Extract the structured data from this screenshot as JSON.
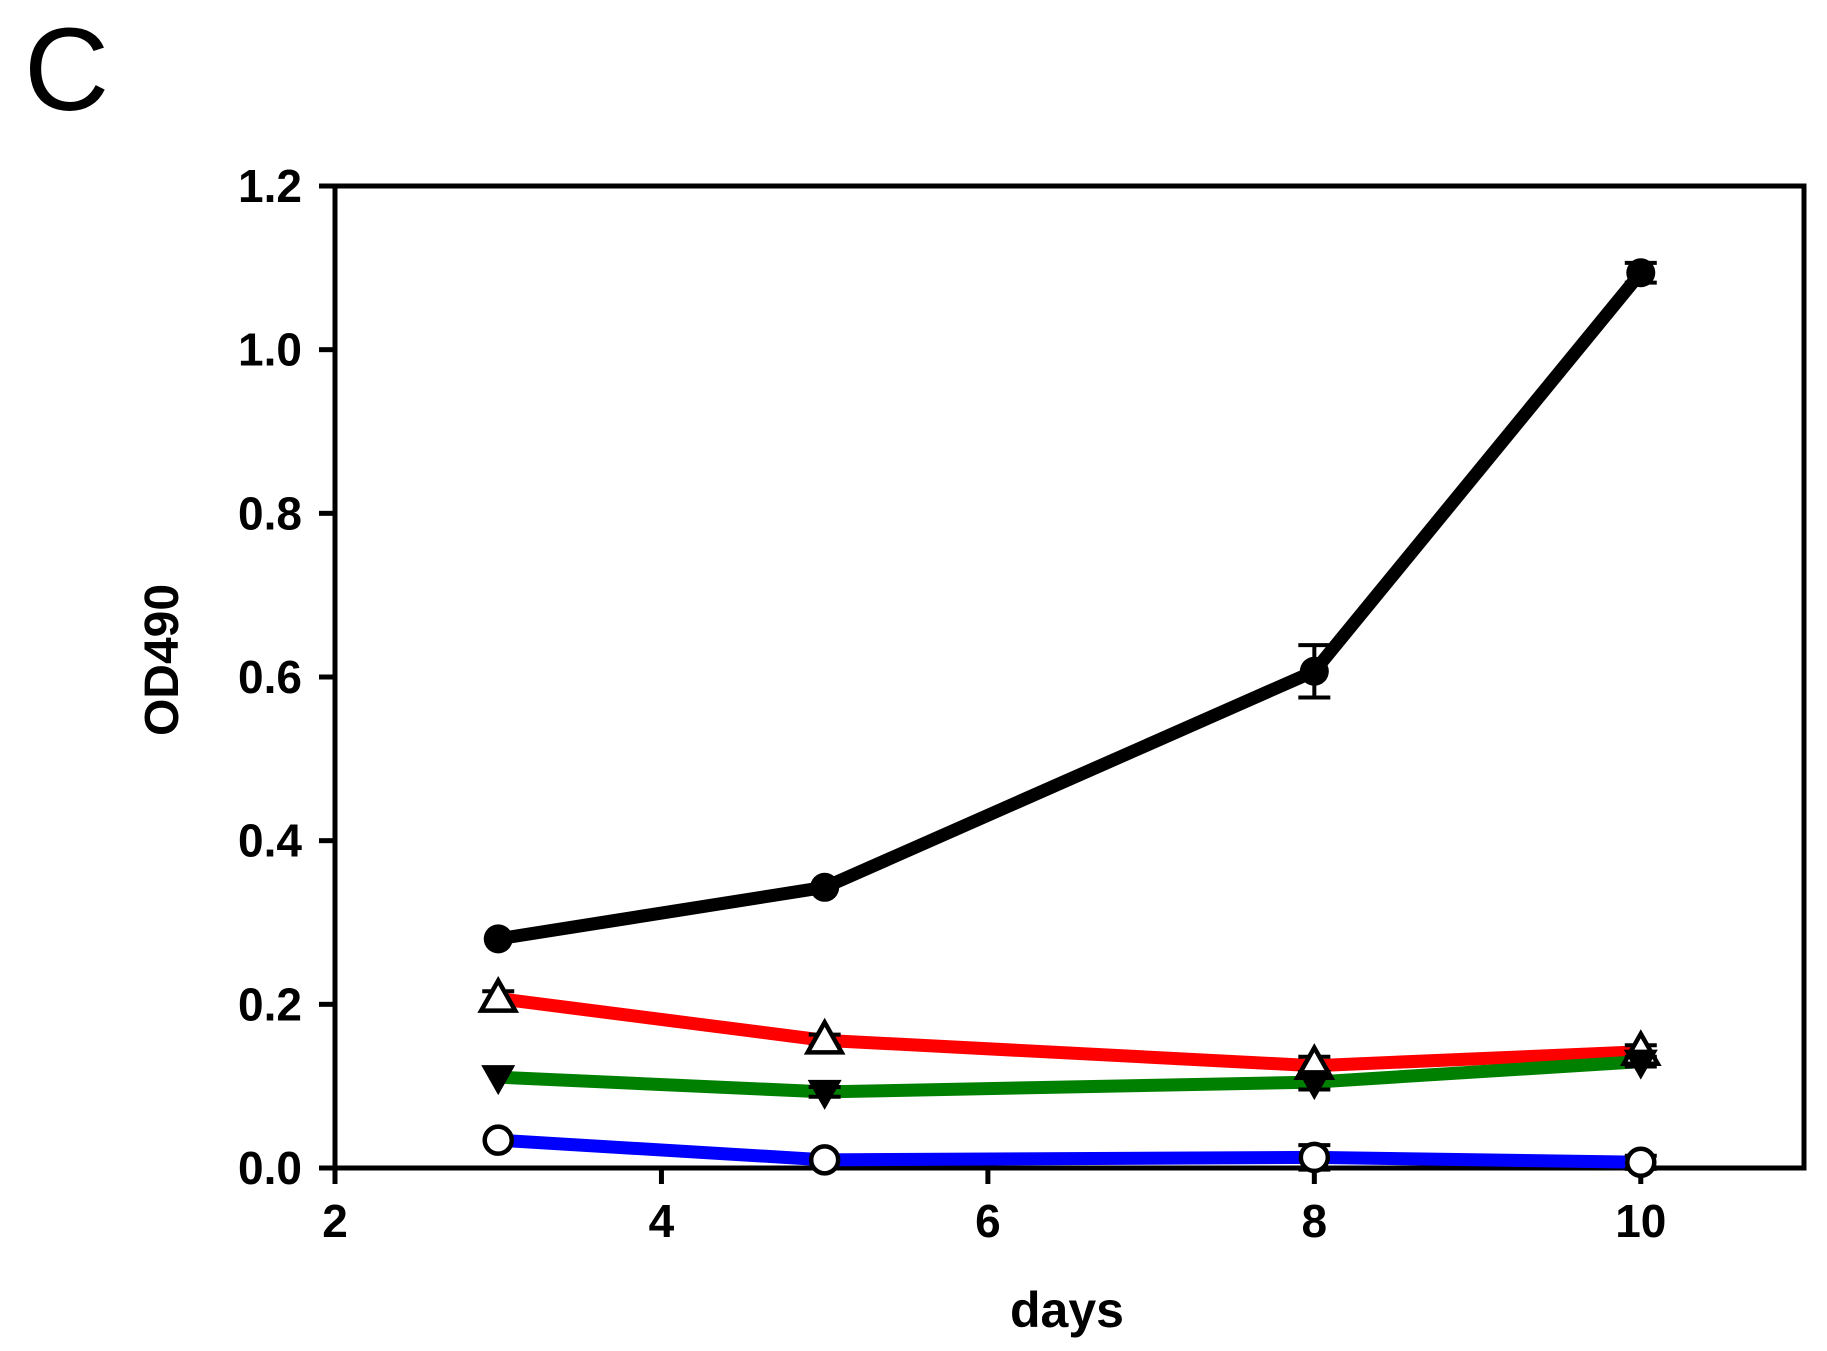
{
  "panel_label": "C",
  "chart_data": {
    "type": "line",
    "title": "",
    "xlabel": "days",
    "ylabel": "OD490",
    "xlim": [
      2,
      11
    ],
    "ylim": [
      0.0,
      1.2
    ],
    "grid": false,
    "legend": "none",
    "frame": "full-box",
    "x_tick_values": [
      2,
      4,
      6,
      8,
      10
    ],
    "x_tick_labels": [
      "2",
      "4",
      "6",
      "8",
      "10"
    ],
    "y_tick_values": [
      0.0,
      0.2,
      0.4,
      0.6,
      0.8,
      1.0,
      1.2
    ],
    "y_tick_labels": [
      "0.0",
      "0.2",
      "0.4",
      "0.6",
      "0.8",
      "1.0",
      "1.2"
    ],
    "x": [
      3,
      5,
      8,
      10
    ],
    "series": [
      {
        "name": "black-filled-circle",
        "line_color": "#000000",
        "marker": "filled-circle",
        "values": [
          0.28,
          0.343,
          0.607,
          1.094
        ],
        "errors": [
          0,
          0,
          0.032,
          0.012
        ]
      },
      {
        "name": "red-open-triangle-up",
        "line_color": "#ff0000",
        "marker": "open-triangle-up",
        "values": [
          0.207,
          0.156,
          0.125,
          0.142
        ],
        "errors": [
          0.009,
          0.007,
          0.011,
          0.008
        ]
      },
      {
        "name": "green-filled-triangle-down",
        "line_color": "#008000",
        "marker": "filled-triangle-down",
        "values": [
          0.111,
          0.093,
          0.105,
          0.13
        ],
        "errors": [
          0,
          0.006,
          0.009,
          0.006
        ]
      },
      {
        "name": "blue-open-circle",
        "line_color": "#0000ff",
        "marker": "open-circle",
        "values": [
          0.034,
          0.01,
          0.013,
          0.007
        ],
        "errors": [
          0,
          0,
          0.015,
          0.008
        ]
      }
    ],
    "marker_stroke_color": "#000000",
    "marker_fill_open": "#ffffff",
    "axis_color": "#000000"
  }
}
